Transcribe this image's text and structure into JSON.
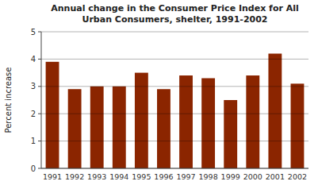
{
  "chart_data": {
    "type": "bar",
    "title": "Annual change in the Consumer Price Index for All\nUrban Consumers, shelter, 1991-2002",
    "y_label": "Percent increase",
    "categories": [
      "1991",
      "1992",
      "1993",
      "1994",
      "1995",
      "1996",
      "1997",
      "1998",
      "1999",
      "2000",
      "2001",
      "2002"
    ],
    "values": [
      3.9,
      2.9,
      3.0,
      3.0,
      3.5,
      2.9,
      3.4,
      3.3,
      2.5,
      3.4,
      4.2,
      3.1
    ],
    "color": "#8B2500",
    "ylim": [
      0,
      5
    ],
    "yticks": [
      0,
      1,
      2,
      3,
      4,
      5
    ],
    "grid": true
  }
}
